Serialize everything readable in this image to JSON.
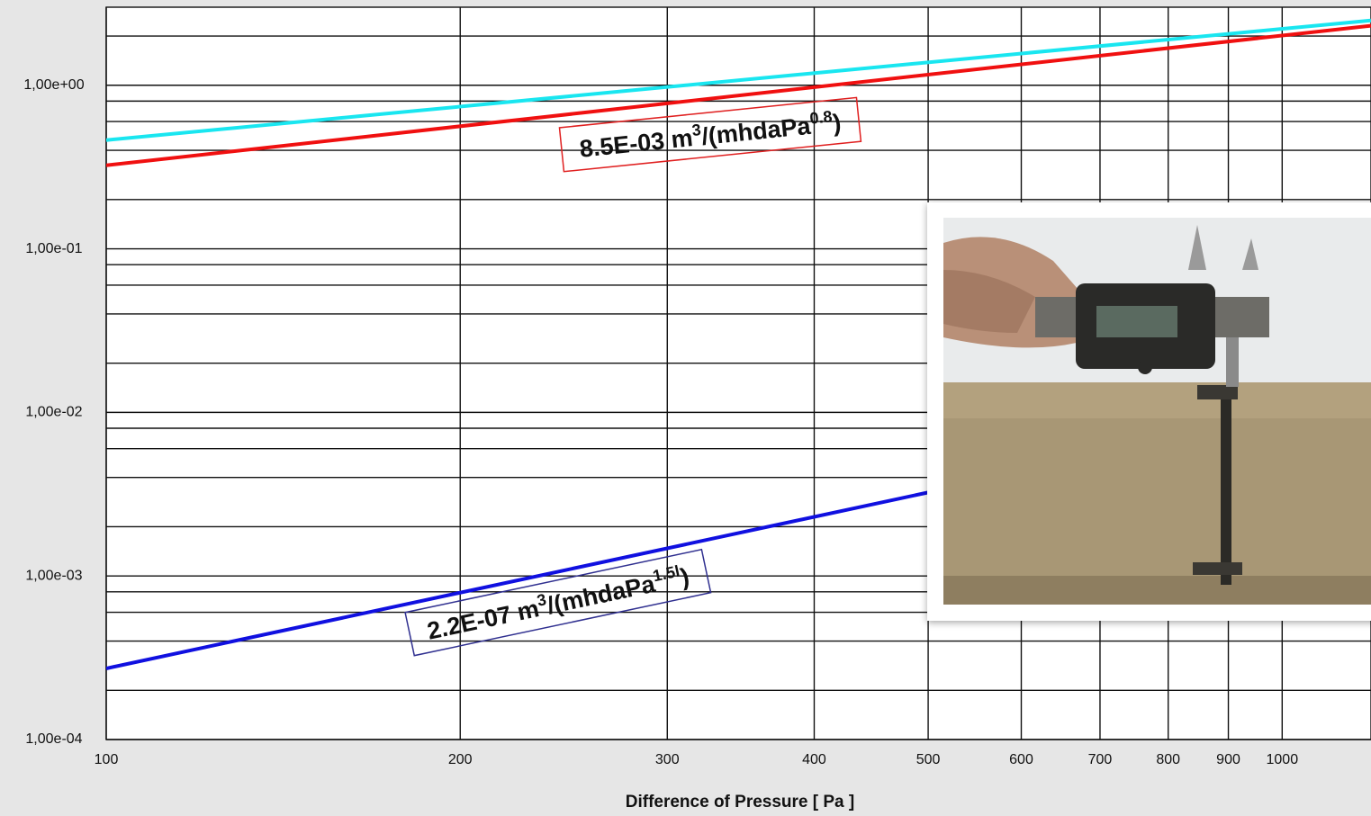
{
  "chart_data": {
    "type": "line",
    "x_label": "Difference of Pressure [ Pa ]",
    "log_x": true,
    "log_y": true,
    "grid": true,
    "xlim": [
      100,
      1190
    ],
    "ylim": [
      0.0001,
      3
    ],
    "xticks": [
      100,
      200,
      300,
      400,
      500,
      600,
      700,
      800,
      900,
      1000
    ],
    "yticks": [
      {
        "value": 0.0001,
        "label": "1,00e-04"
      },
      {
        "value": 0.001,
        "label": "1,00e-03"
      },
      {
        "value": 0.01,
        "label": "1,00e-02"
      },
      {
        "value": 0.1,
        "label": "1,00e-01"
      },
      {
        "value": 1,
        "label": "1,00e+00"
      }
    ],
    "yminor": [
      0.0002,
      0.0004,
      0.0006,
      0.0008,
      0.002,
      0.004,
      0.006,
      0.008,
      0.02,
      0.04,
      0.06,
      0.08,
      0.2,
      0.4,
      0.6,
      0.8,
      2
    ],
    "series": [
      {
        "color": "#19e6f0",
        "x": [
          100,
          1190
        ],
        "values": [
          0.462,
          2.49
        ]
      },
      {
        "color": "#f01010",
        "x": [
          100,
          1190
        ],
        "values": [
          0.324,
          2.31
        ]
      },
      {
        "color": "#1010e0",
        "x": [
          100,
          500
        ],
        "values": [
          0.000272,
          0.00324
        ]
      }
    ],
    "annotations": [
      {
        "parts": [
          "8.5E-03 m",
          "3",
          "/(mhdaPa",
          "0.8",
          ")"
        ],
        "color": "#e02020"
      },
      {
        "parts": [
          "2.2E-07 m",
          "3",
          "/(mhdaPa",
          "1.5l",
          ")"
        ],
        "color": "#303090"
      }
    ]
  }
}
